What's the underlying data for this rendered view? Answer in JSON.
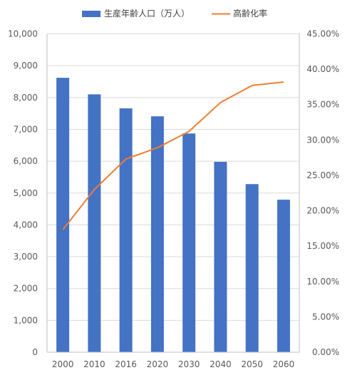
{
  "chart_data": {
    "type": "bar+line",
    "categories": [
      "2000",
      "2010",
      "2016",
      "2020",
      "2030",
      "2040",
      "2050",
      "2060"
    ],
    "series": [
      {
        "name": "生産年齢人口（万人）",
        "type": "bar",
        "axis": "left",
        "color": "#4472C4",
        "values": [
          8620,
          8100,
          7660,
          7410,
          6870,
          5980,
          5280,
          4790
        ]
      },
      {
        "name": "高齢化率",
        "type": "line",
        "axis": "right",
        "color": "#ED7D31",
        "values": [
          17.3,
          23.0,
          27.3,
          28.9,
          31.2,
          35.3,
          37.7,
          38.2
        ]
      }
    ],
    "y_left": {
      "range": [
        0,
        10000
      ],
      "ticks": [
        "0",
        "1,000",
        "2,000",
        "3,000",
        "4,000",
        "5,000",
        "6,000",
        "7,000",
        "8,000",
        "9,000",
        "10,000"
      ]
    },
    "y_right": {
      "range": [
        0,
        45
      ],
      "ticks": [
        "0.00%",
        "5.00%",
        "10.00%",
        "15.00%",
        "20.00%",
        "25.00%",
        "30.00%",
        "35.00%",
        "40.00%",
        "45.00%"
      ]
    },
    "grid": true,
    "legend_position": "top"
  }
}
